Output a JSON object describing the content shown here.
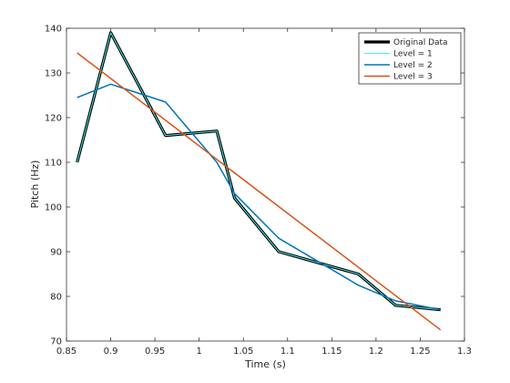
{
  "chart_data": {
    "type": "line",
    "title": "",
    "xlabel": "Time (s)",
    "ylabel": "Pitch (Hz)",
    "xlim": [
      0.85,
      1.3
    ],
    "ylim": [
      70,
      140
    ],
    "xticks": [
      "0.85",
      "0.9",
      "0.95",
      "1",
      "1.05",
      "1.1",
      "1.15",
      "1.2",
      "1.25",
      "1.3"
    ],
    "yticks": [
      "70",
      "80",
      "90",
      "100",
      "110",
      "120",
      "130",
      "140"
    ],
    "grid": false,
    "legend_position": "top-right",
    "series": [
      {
        "name": "Original Data",
        "color": "#000000",
        "x": [
          0.862,
          0.9,
          0.962,
          1.02,
          1.04,
          1.09,
          1.18,
          1.222,
          1.273
        ],
        "y": [
          110,
          139,
          116,
          117,
          102,
          90,
          85,
          78,
          77
        ]
      },
      {
        "name": "Level = 1",
        "color": "#4ee8e8",
        "x": [
          0.862,
          0.9,
          0.962,
          1.02,
          1.04,
          1.09,
          1.18,
          1.222,
          1.273
        ],
        "y": [
          110,
          139,
          116,
          117,
          102,
          90,
          85,
          78,
          77
        ]
      },
      {
        "name": "Level = 2",
        "color": "#0072bd",
        "x": [
          0.862,
          0.9,
          0.962,
          1.02,
          1.04,
          1.09,
          1.18,
          1.222,
          1.273
        ],
        "y": [
          124.5,
          127.5,
          123.5,
          110,
          103,
          93,
          82.5,
          79,
          77
        ]
      },
      {
        "name": "Level = 3",
        "color": "#d95319",
        "x": [
          0.862,
          1.273
        ],
        "y": [
          134.5,
          72.5
        ]
      }
    ]
  }
}
